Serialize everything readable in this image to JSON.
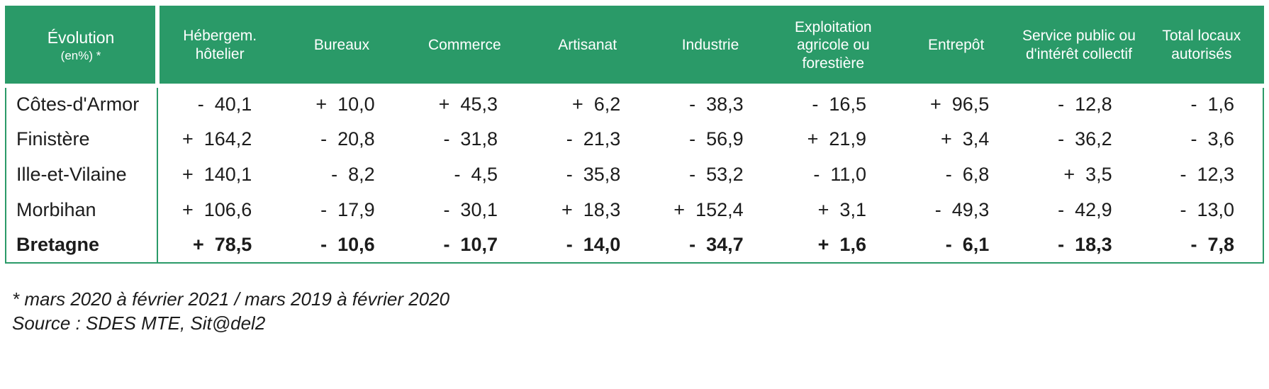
{
  "colors": {
    "header_green": "#2a9a68",
    "text_dark": "#1c1c1c",
    "header_text": "#ffffff",
    "background": "#ffffff"
  },
  "table": {
    "corner": {
      "title": "Évolution",
      "subtitle": "(en%) *"
    }
  },
  "chart_data": {
    "type": "table",
    "title": "Évolution (en%) *",
    "unit": "percent",
    "columns": [
      "Hébergem. hôtelier",
      "Bureaux",
      "Commerce",
      "Artisanat",
      "Industrie",
      "Exploitation agricole ou forestière",
      "Entrepôt",
      "Service public ou d'intérêt collectif",
      "Total locaux autorisés"
    ],
    "rows": [
      {
        "name": "Côtes-d'Armor",
        "bold": false,
        "values": [
          -40.1,
          10.0,
          45.3,
          6.2,
          -38.3,
          -16.5,
          96.5,
          -12.8,
          -1.6
        ]
      },
      {
        "name": "Finistère",
        "bold": false,
        "values": [
          164.2,
          -20.8,
          -31.8,
          -21.3,
          -56.9,
          21.9,
          3.4,
          -36.2,
          -3.6
        ]
      },
      {
        "name": "Ille-et-Vilaine",
        "bold": false,
        "values": [
          140.1,
          -8.2,
          -4.5,
          -35.8,
          -53.2,
          -11.0,
          -6.8,
          3.5,
          -12.3
        ]
      },
      {
        "name": "Morbihan",
        "bold": false,
        "values": [
          106.6,
          -17.9,
          -30.1,
          18.3,
          152.4,
          3.1,
          -49.3,
          -42.9,
          -13.0
        ]
      },
      {
        "name": "Bretagne",
        "bold": true,
        "values": [
          78.5,
          -10.6,
          -10.7,
          -14.0,
          -34.7,
          1.6,
          -6.1,
          -18.3,
          -7.8
        ]
      }
    ],
    "number_format": "sign nbsp value, comma decimal, 1 decimal place"
  },
  "footnotes": {
    "asterisk": "* mars 2020 à février 2021 / mars 2019 à février 2020",
    "source": "Source : SDES MTE, Sit@del2"
  }
}
